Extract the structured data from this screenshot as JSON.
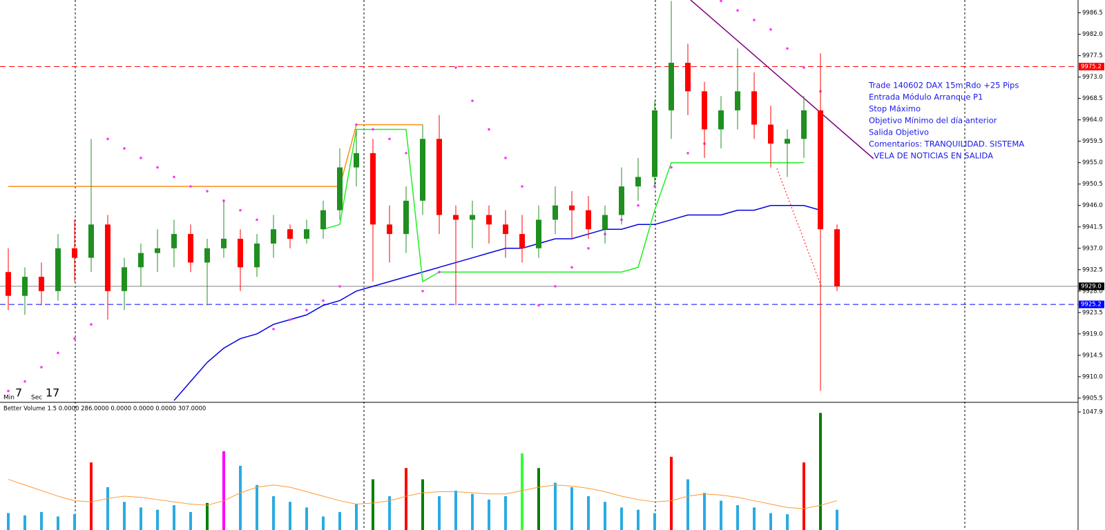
{
  "chart_data": [
    {
      "type": "candlestick",
      "ylim": [
        9904.9,
        9989.2
      ],
      "yticks": [
        9986.5,
        {
          "value": 9982,
          "label": "9982.0"
        },
        9977.5,
        {
          "value": 9973,
          "label": "9973.0"
        },
        9968.5,
        {
          "value": 9964,
          "label": "9964.0"
        },
        9959.5,
        {
          "value": 9955,
          "label": "9955.0"
        },
        9950.5,
        {
          "value": 9946,
          "label": "9946.0"
        },
        9941.5,
        {
          "value": 9937,
          "label": "9937.0"
        },
        9932.5,
        {
          "value": 9928,
          "label": "9928.0"
        },
        9923.5,
        {
          "value": 9919,
          "label": "9919.0"
        },
        9914.5,
        {
          "value": 9910,
          "label": "9910.0"
        },
        9905.5
      ],
      "up_color": "#1f8f1f",
      "down_color": "#ff0000",
      "open": [
        9932,
        9927,
        9931,
        9928,
        9937,
        9935,
        9942,
        9928,
        9933,
        9936,
        9937,
        9940,
        9934,
        9937,
        9939,
        9933,
        9938,
        9941,
        9939,
        9941,
        9945,
        9954,
        9957,
        9942,
        9940,
        9947,
        9960,
        9944,
        9943,
        9944,
        9942,
        9940,
        9937,
        9943,
        9946,
        9945,
        9941,
        9944,
        9950,
        9952,
        9966,
        9976,
        9970,
        9962,
        9966,
        9970,
        9963,
        9959,
        9960,
        9966,
        9941
      ],
      "high": [
        9937,
        9933,
        9934,
        9940,
        9943,
        9960,
        9944,
        9935,
        9938,
        9941,
        9943,
        9942,
        9939,
        9947,
        9941,
        9940,
        9944,
        9942,
        9943,
        9947,
        9958,
        9962,
        9960,
        9946,
        9950,
        9963,
        9965,
        9946,
        9947,
        9946,
        9945,
        9944,
        9946,
        9950,
        9949,
        9948,
        9946,
        9954,
        9956,
        9968,
        9989,
        9980,
        9972,
        9969,
        9979,
        9974,
        9967,
        9962,
        9969,
        9978,
        9942
      ],
      "low": [
        9924,
        9923,
        9925,
        9926,
        9930,
        9932,
        9922,
        9924,
        9929,
        9932,
        9933,
        9932,
        9925,
        9935,
        9928,
        9931,
        9935,
        9937,
        9938,
        9939,
        9943,
        9950,
        9930,
        9934,
        9936,
        9944,
        9940,
        9925,
        9937,
        9938,
        9935,
        9934,
        9935,
        9940,
        9939,
        9939,
        9938,
        9942,
        9947,
        9950,
        9960,
        9965,
        9956,
        9958,
        9962,
        9960,
        9954,
        9952,
        9956,
        9907,
        9928
      ],
      "close": [
        9927,
        9931,
        9928,
        9937,
        9935,
        9942,
        9928,
        9933,
        9936,
        9937,
        9940,
        9934,
        9937,
        9939,
        9933,
        9938,
        9941,
        9939,
        9941,
        9945,
        9954,
        9957,
        9942,
        9940,
        9947,
        9960,
        9944,
        9943,
        9944,
        9942,
        9940,
        9937,
        9943,
        9946,
        9945,
        9941,
        9944,
        9950,
        9952,
        9966,
        9976,
        9970,
        9962,
        9966,
        9970,
        9963,
        9959,
        9960,
        9966,
        9941,
        9929
      ],
      "overlays": [
        {
          "style": "line",
          "color": "#0000e0",
          "values": [
            null,
            null,
            null,
            null,
            null,
            null,
            null,
            null,
            null,
            null,
            9905,
            9909,
            9913,
            9916,
            9918,
            9919,
            9921,
            9922,
            9923,
            9925,
            9926,
            9928,
            9929,
            9930,
            9931,
            9932,
            9933,
            9934,
            9935,
            9936,
            9937,
            9937,
            9938,
            9939,
            9939,
            9940,
            9941,
            9941,
            9942,
            9942,
            9943,
            9944,
            9944,
            9944,
            9945,
            9945,
            9946,
            9946,
            9946,
            9945,
            null
          ]
        },
        {
          "style": "line",
          "color": "#ff8c1a",
          "values": [
            9950,
            9950,
            9950,
            9950,
            9950,
            9950,
            9950,
            9950,
            9950,
            9950,
            9950,
            9950,
            9950,
            9950,
            9950,
            9950,
            9950,
            9950,
            9950,
            9950,
            9950,
            9963,
            9963,
            9963,
            9963,
            9963,
            null,
            null,
            null,
            null,
            null,
            null,
            null,
            null,
            null,
            null,
            null,
            null,
            null,
            null,
            null,
            null,
            null,
            null,
            null,
            null,
            null,
            null,
            null,
            null,
            null
          ]
        },
        {
          "style": "line",
          "color": "#22ee22",
          "values": [
            null,
            null,
            null,
            null,
            null,
            null,
            null,
            null,
            null,
            null,
            null,
            null,
            null,
            null,
            null,
            null,
            null,
            null,
            null,
            9941,
            9942,
            9962,
            9962,
            9962,
            9962,
            9930,
            9932,
            9932,
            9932,
            9932,
            9932,
            9932,
            9932,
            9932,
            9932,
            9932,
            9932,
            9932,
            9933,
            9945,
            9955,
            9955,
            9955,
            9955,
            9955,
            9955,
            9955,
            9955,
            9955,
            null,
            null
          ]
        },
        {
          "style": "dots",
          "color": "#ff33ff",
          "values": [
            9907,
            9909,
            9912,
            9915,
            9918,
            9921,
            9960,
            9958,
            9956,
            9954,
            9952,
            9950,
            9949,
            9947,
            9945,
            9943,
            9920,
            9922,
            9924,
            9926,
            9929,
            9963,
            9962,
            9960,
            9957,
            9928,
            9932,
            9975,
            9968,
            9962,
            9956,
            9950,
            9925,
            9929,
            9933,
            9937,
            9940,
            9943,
            9946,
            9950,
            9954,
            9957,
            9959,
            9989,
            9987,
            9985,
            9983,
            9979,
            9975,
            9970,
            null
          ]
        }
      ],
      "levels": [
        {
          "value": 9975.2,
          "color": "#ff0000",
          "dashed": true,
          "tag": "#ff0000"
        },
        {
          "value": 9929,
          "label": "9929.0",
          "color": "#808080",
          "dashed": false,
          "tag": "#000000"
        },
        {
          "value": 9925.2,
          "color": "#0000ff",
          "dashed": true,
          "tag": "#0000ff"
        }
      ],
      "annotation": [
        "Trade 140602 DAX 15m Rdo +25 Pips",
        "Entrada Módulo Arranque P1",
        "Stop Máximo",
        "Objetivo Mínimo del día anterior",
        "Salida Objetivo",
        "Comentarios: TRANQUILIDAD. SISTEMA",
        "  VELA DE NOTICIAS EN SALIDA"
      ],
      "annotation_color": "#1a1ae6",
      "timer": {
        "min_label": "Min",
        "min": 7,
        "sec_label": "Sec",
        "sec": 17
      }
    },
    {
      "type": "bar",
      "title": "Better Volume 1.5 0.0000 286.0000 0.0000 0.0000 0.0000 307.0000",
      "ylim": [
        0,
        1047.9
      ],
      "yticks": [
        1047.9
      ],
      "values": [
        150,
        130,
        160,
        120,
        140,
        600,
        380,
        250,
        200,
        180,
        220,
        160,
        240,
        700,
        570,
        400,
        300,
        250,
        200,
        120,
        160,
        230,
        450,
        300,
        550,
        450,
        300,
        350,
        320,
        270,
        300,
        680,
        550,
        420,
        380,
        300,
        250,
        200,
        180,
        150,
        650,
        450,
        330,
        260,
        220,
        200,
        150,
        140,
        600,
        1040,
        180
      ],
      "colors": [
        "#29abe2",
        "#29abe2",
        "#29abe2",
        "#29abe2",
        "#29abe2",
        "#ff0000",
        "#29abe2",
        "#29abe2",
        "#29abe2",
        "#29abe2",
        "#29abe2",
        "#29abe2",
        "#008000",
        "#ff00ff",
        "#29abe2",
        "#29abe2",
        "#29abe2",
        "#29abe2",
        "#29abe2",
        "#29abe2",
        "#29abe2",
        "#29abe2",
        "#008000",
        "#29abe2",
        "#ff0000",
        "#008000",
        "#29abe2",
        "#29abe2",
        "#29abe2",
        "#29abe2",
        "#29abe2",
        "#33ff33",
        "#008000",
        "#29abe2",
        "#29abe2",
        "#29abe2",
        "#29abe2",
        "#29abe2",
        "#29abe2",
        "#29abe2",
        "#ff0000",
        "#29abe2",
        "#29abe2",
        "#29abe2",
        "#29abe2",
        "#29abe2",
        "#29abe2",
        "#29abe2",
        "#ff0000",
        "#008000",
        "#29abe2"
      ],
      "ma": {
        "color": "#ff9933",
        "values": [
          450,
          400,
          350,
          300,
          260,
          250,
          280,
          300,
          290,
          270,
          250,
          230,
          220,
          260,
          330,
          380,
          400,
          380,
          340,
          300,
          260,
          230,
          240,
          260,
          300,
          330,
          340,
          340,
          330,
          320,
          320,
          350,
          380,
          400,
          390,
          370,
          340,
          300,
          270,
          250,
          260,
          300,
          320,
          310,
          290,
          260,
          230,
          200,
          190,
          220,
          260
        ]
      }
    }
  ]
}
